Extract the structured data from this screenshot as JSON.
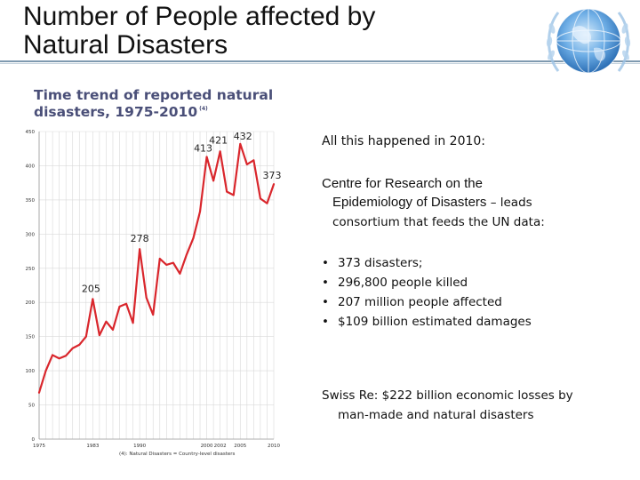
{
  "slide": {
    "title": "Number of People affected by\nNatural Disasters"
  },
  "chart_data": {
    "type": "line",
    "title": "Time trend of reported natural disasters, 1975-2010",
    "title_line1": "Time trend of reported natural",
    "title_line2": "disasters, 1975-2010",
    "title_note": "(4)",
    "footnote": "(4): Natural Disasters = Country-level disasters",
    "xlim": [
      1975,
      2010
    ],
    "ylim": [
      0,
      450
    ],
    "yticks": [
      0,
      50,
      100,
      150,
      200,
      250,
      300,
      350,
      400,
      450
    ],
    "xtick_labels": [
      "1975",
      "1983",
      "1990",
      "2000",
      "2002",
      "2005",
      "2010"
    ],
    "x": [
      1975,
      1976,
      1977,
      1978,
      1979,
      1980,
      1981,
      1982,
      1983,
      1984,
      1985,
      1986,
      1987,
      1988,
      1989,
      1990,
      1991,
      1992,
      1993,
      1994,
      1995,
      1996,
      1997,
      1998,
      1999,
      2000,
      2001,
      2002,
      2003,
      2004,
      2005,
      2006,
      2007,
      2008,
      2009,
      2010
    ],
    "series": [
      {
        "name": "Natural disasters",
        "color": "#d9262c",
        "values": [
          68,
          100,
          123,
          118,
          122,
          133,
          138,
          150,
          205,
          152,
          172,
          160,
          194,
          198,
          170,
          278,
          207,
          182,
          264,
          255,
          258,
          242,
          270,
          294,
          333,
          413,
          378,
          421,
          362,
          357,
          432,
          402,
          408,
          352,
          345,
          373
        ]
      }
    ],
    "data_labels": [
      {
        "x": 1983,
        "label": "205"
      },
      {
        "x": 1990,
        "label": "278"
      },
      {
        "x": 2000,
        "label": "413"
      },
      {
        "x": 2002,
        "label": "421"
      },
      {
        "x": 2005,
        "label": "432"
      },
      {
        "x": 2010,
        "label": "373"
      }
    ]
  },
  "info": {
    "heading": "All this happened in 2010:",
    "source_line1": "Centre for Research on the",
    "source_line2_main": "Epidemiology of Disasters",
    "source_line2_tail": " – leads",
    "source_line3": "consortium that feeds the UN data:",
    "bullets": [
      "373 disasters;",
      "296,800 people killed",
      "207  million people affected",
      "$109 billion estimated damages"
    ],
    "bullet_char": "•",
    "swiss_line1": "Swiss Re: $222 billion economic losses by",
    "swiss_line2": "man-made and natural disasters"
  },
  "colors": {
    "line": "#d9262c",
    "chart_title": "#4a4f78",
    "un_blue": "#3a7fc4"
  }
}
